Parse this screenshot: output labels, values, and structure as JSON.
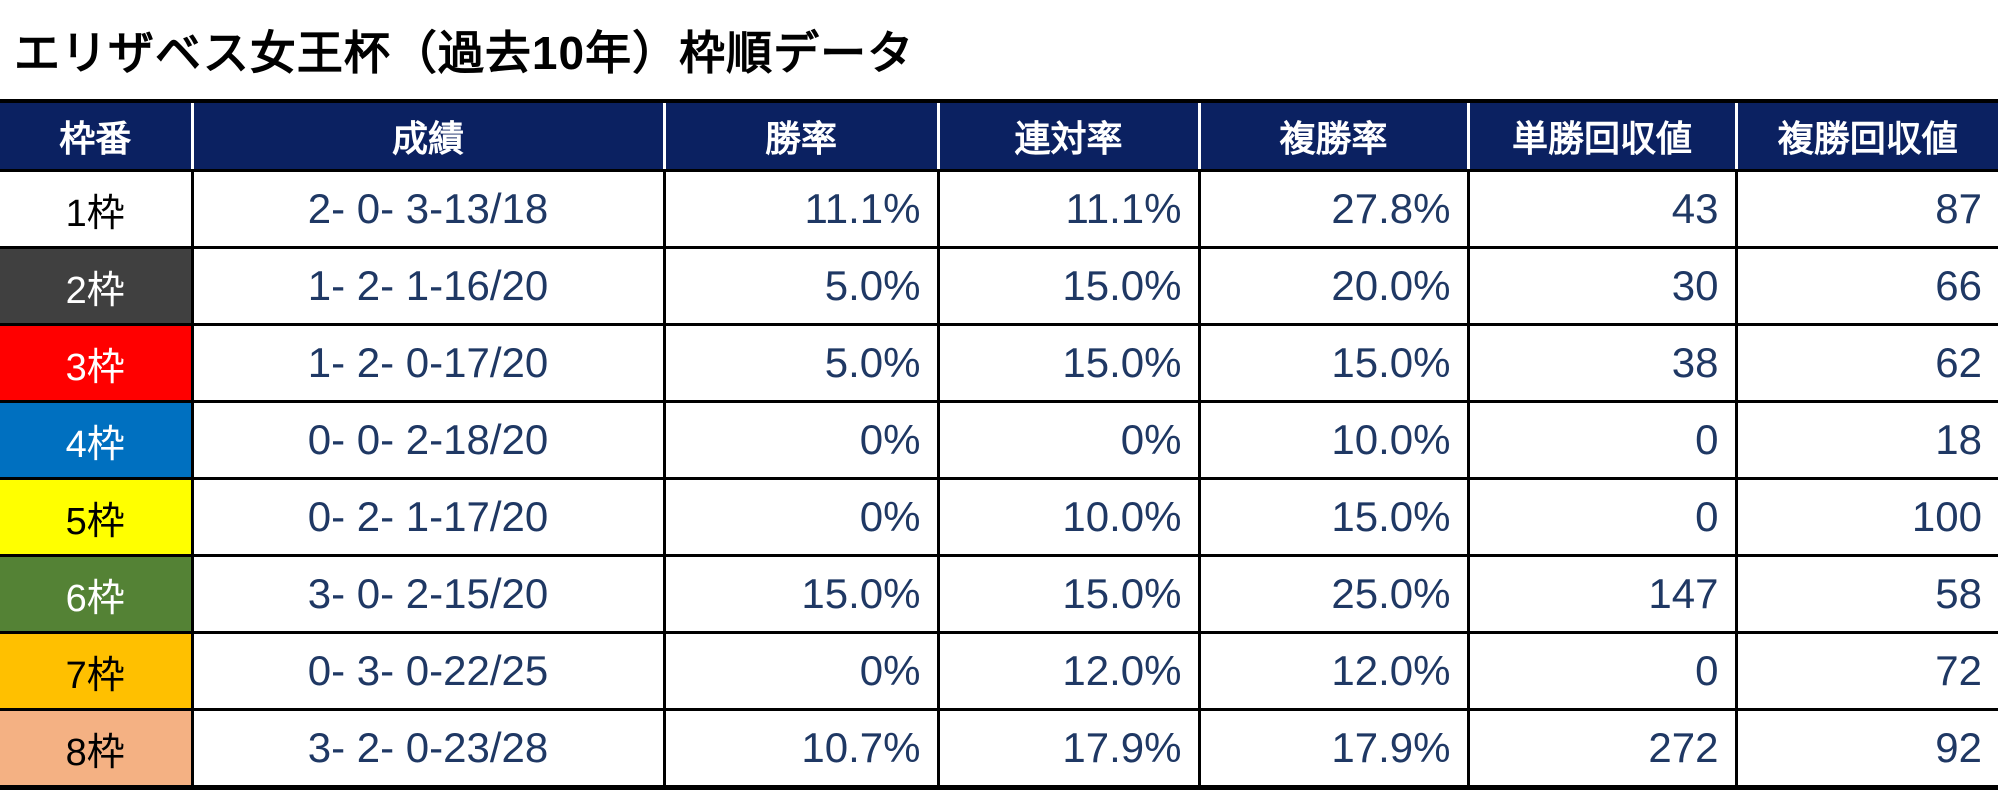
{
  "title": "エリザベス女王杯（過去10年）枠順データ",
  "chart_data": {
    "type": "table",
    "title": "エリザベス女王杯（過去10年）枠順データ",
    "columns": [
      "枠番",
      "成績",
      "勝率",
      "連対率",
      "複勝率",
      "単勝回収値",
      "複勝回収値"
    ],
    "rows": [
      {
        "waku": "1枠",
        "waku_bg": "#FFFFFF",
        "waku_fg": "#000000",
        "seiseki": "2- 0- 3-13/18",
        "win_rate": "11.1%",
        "rentai_rate": "11.1%",
        "fukusho_rate": "27.8%",
        "tansho_return": "43",
        "fukusho_return": "87"
      },
      {
        "waku": "2枠",
        "waku_bg": "#404040",
        "waku_fg": "#FFFFFF",
        "seiseki": "1- 2- 1-16/20",
        "win_rate": "5.0%",
        "rentai_rate": "15.0%",
        "fukusho_rate": "20.0%",
        "tansho_return": "30",
        "fukusho_return": "66"
      },
      {
        "waku": "3枠",
        "waku_bg": "#FF0000",
        "waku_fg": "#FFFFFF",
        "seiseki": "1- 2- 0-17/20",
        "win_rate": "5.0%",
        "rentai_rate": "15.0%",
        "fukusho_rate": "15.0%",
        "tansho_return": "38",
        "fukusho_return": "62"
      },
      {
        "waku": "4枠",
        "waku_bg": "#0070C0",
        "waku_fg": "#FFFFFF",
        "seiseki": "0- 0- 2-18/20",
        "win_rate": "0%",
        "rentai_rate": "0%",
        "fukusho_rate": "10.0%",
        "tansho_return": "0",
        "fukusho_return": "18"
      },
      {
        "waku": "5枠",
        "waku_bg": "#FFFF00",
        "waku_fg": "#000000",
        "seiseki": "0- 2- 1-17/20",
        "win_rate": "0%",
        "rentai_rate": "10.0%",
        "fukusho_rate": "15.0%",
        "tansho_return": "0",
        "fukusho_return": "100"
      },
      {
        "waku": "6枠",
        "waku_bg": "#548235",
        "waku_fg": "#FFFFFF",
        "seiseki": "3- 0- 2-15/20",
        "win_rate": "15.0%",
        "rentai_rate": "15.0%",
        "fukusho_rate": "25.0%",
        "tansho_return": "147",
        "fukusho_return": "58"
      },
      {
        "waku": "7枠",
        "waku_bg": "#FFC000",
        "waku_fg": "#000000",
        "seiseki": "0- 3- 0-22/25",
        "win_rate": "0%",
        "rentai_rate": "12.0%",
        "fukusho_rate": "12.0%",
        "tansho_return": "0",
        "fukusho_return": "72"
      },
      {
        "waku": "8枠",
        "waku_bg": "#F4B183",
        "waku_fg": "#000000",
        "seiseki": "3- 2- 0-23/28",
        "win_rate": "10.7%",
        "rentai_rate": "17.9%",
        "fukusho_rate": "17.9%",
        "tansho_return": "272",
        "fukusho_return": "92"
      }
    ]
  },
  "colors": {
    "header_bg": "#0B2161",
    "header_text": "#FFFFFF",
    "data_text": "#1F3864",
    "grid_border": "#000000",
    "title_text": "#000000"
  }
}
